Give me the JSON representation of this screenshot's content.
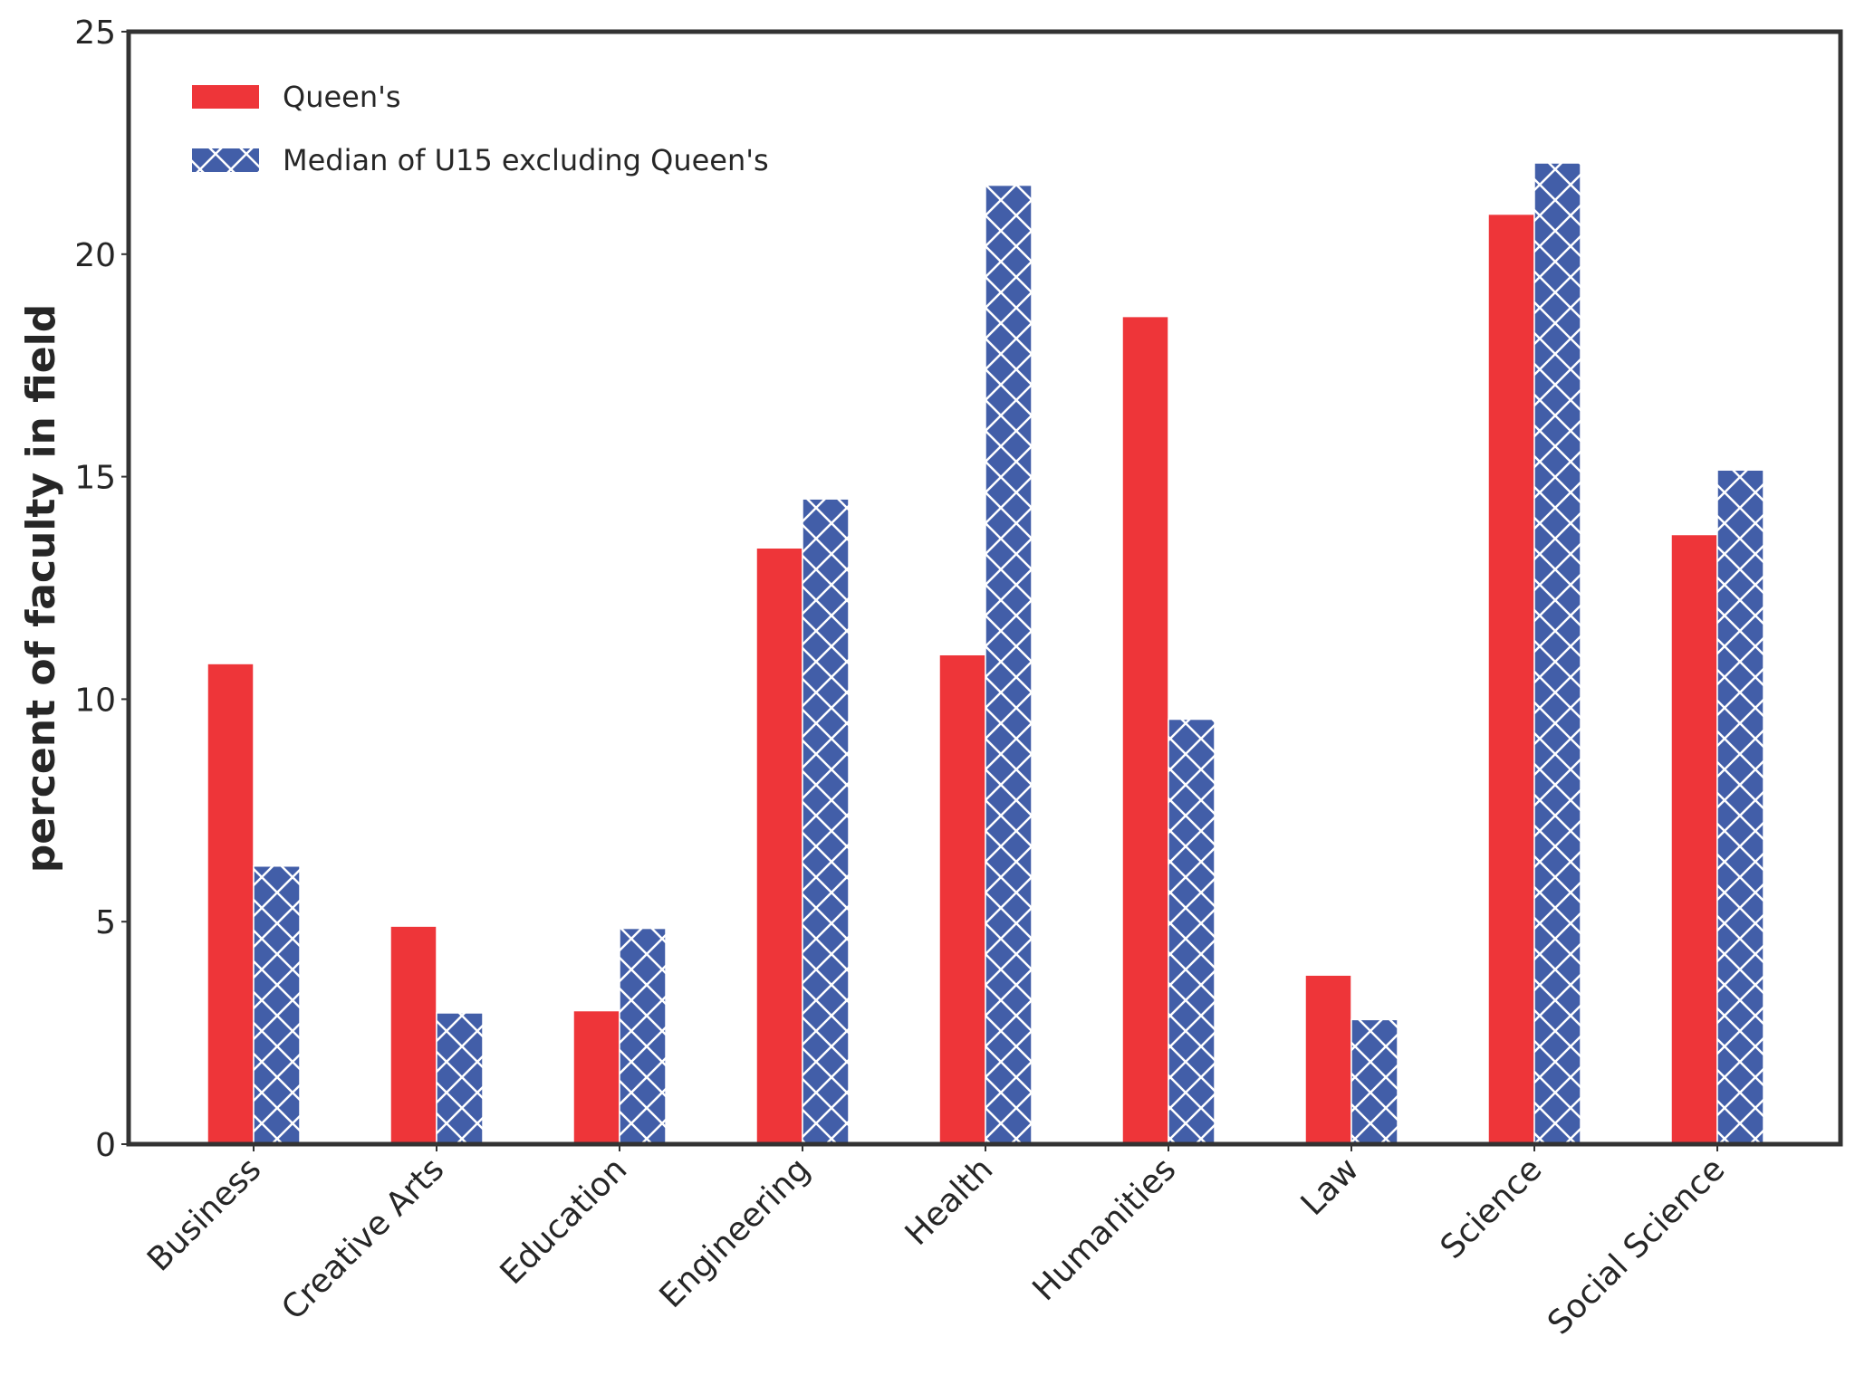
{
  "chart_data": {
    "type": "bar",
    "title": "",
    "xlabel": "",
    "ylabel": "percent of faculty in field",
    "ylim": [
      0,
      25
    ],
    "yticks": [
      0,
      5,
      10,
      15,
      20,
      25
    ],
    "grid": false,
    "legend_position": "top-left",
    "categories": [
      "Business",
      "Creative Arts",
      "Education",
      "Engineering",
      "Health",
      "Humanities",
      "Law",
      "Science",
      "Social Science"
    ],
    "series": [
      {
        "name": "Queen's",
        "color": "#ee3539",
        "hatch": "none",
        "values": [
          10.8,
          4.9,
          3.0,
          13.4,
          11.0,
          18.6,
          3.8,
          20.9,
          13.7
        ]
      },
      {
        "name": "Median of U15 excluding Queen's",
        "color": "#425ea8",
        "hatch": "x",
        "values": [
          6.25,
          2.95,
          4.85,
          14.5,
          21.55,
          9.55,
          2.8,
          22.05,
          15.15
        ]
      }
    ]
  }
}
